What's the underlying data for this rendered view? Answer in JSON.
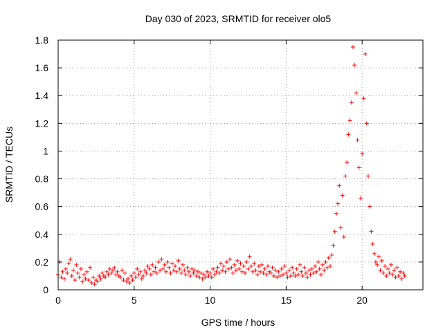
{
  "chart_data": {
    "type": "scatter",
    "title": "Day 030 of 2023, SRMTID for receiver olo5",
    "xlabel": "GPS time / hours",
    "ylabel": "SRMTID / TECUs",
    "xlim": [
      0,
      24
    ],
    "ylim": [
      0,
      1.8
    ],
    "xticks": [
      0,
      5,
      10,
      15,
      20
    ],
    "yticks": [
      0,
      0.2,
      0.4,
      0.6,
      0.8,
      1,
      1.2,
      1.4,
      1.6,
      1.8
    ],
    "xtick_labels": [
      "0",
      "5",
      "10",
      "15",
      "20"
    ],
    "ytick_labels": [
      "0",
      "0.2",
      "0.4",
      "0.6",
      "0.8",
      "1",
      "1.2",
      "1.4",
      "1.6",
      "1.8"
    ],
    "grid": true,
    "marker": "+",
    "color": "#ff0000",
    "series": [
      {
        "name": "SRMTID",
        "points": [
          [
            0.0,
            0.11
          ],
          [
            0.1,
            0.2
          ],
          [
            0.2,
            0.09
          ],
          [
            0.3,
            0.13
          ],
          [
            0.4,
            0.08
          ],
          [
            0.5,
            0.15
          ],
          [
            0.6,
            0.12
          ],
          [
            0.7,
            0.19
          ],
          [
            0.8,
            0.22
          ],
          [
            0.9,
            0.1
          ],
          [
            1.0,
            0.14
          ],
          [
            1.1,
            0.07
          ],
          [
            1.2,
            0.18
          ],
          [
            1.3,
            0.12
          ],
          [
            1.4,
            0.09
          ],
          [
            1.5,
            0.15
          ],
          [
            1.6,
            0.06
          ],
          [
            1.7,
            0.11
          ],
          [
            1.8,
            0.08
          ],
          [
            1.9,
            0.13
          ],
          [
            2.0,
            0.07
          ],
          [
            2.1,
            0.16
          ],
          [
            2.2,
            0.05
          ],
          [
            2.3,
            0.09
          ],
          [
            2.4,
            0.04
          ],
          [
            2.5,
            0.07
          ],
          [
            2.6,
            0.06
          ],
          [
            2.7,
            0.1
          ],
          [
            2.8,
            0.08
          ],
          [
            2.9,
            0.12
          ],
          [
            3.0,
            0.1
          ],
          [
            3.1,
            0.09
          ],
          [
            3.2,
            0.13
          ],
          [
            3.3,
            0.11
          ],
          [
            3.4,
            0.15
          ],
          [
            3.5,
            0.12
          ],
          [
            3.6,
            0.14
          ],
          [
            3.7,
            0.16
          ],
          [
            3.8,
            0.11
          ],
          [
            3.9,
            0.13
          ],
          [
            4.0,
            0.1
          ],
          [
            4.1,
            0.09
          ],
          [
            4.2,
            0.14
          ],
          [
            4.3,
            0.07
          ],
          [
            4.4,
            0.12
          ],
          [
            4.5,
            0.06
          ],
          [
            4.6,
            0.08
          ],
          [
            4.7,
            0.05
          ],
          [
            4.8,
            0.1
          ],
          [
            4.9,
            0.07
          ],
          [
            5.0,
            0.12
          ],
          [
            5.1,
            0.09
          ],
          [
            5.2,
            0.15
          ],
          [
            5.3,
            0.11
          ],
          [
            5.4,
            0.13
          ],
          [
            5.5,
            0.08
          ],
          [
            5.6,
            0.1
          ],
          [
            5.7,
            0.14
          ],
          [
            5.8,
            0.12
          ],
          [
            5.9,
            0.17
          ],
          [
            6.0,
            0.15
          ],
          [
            6.1,
            0.11
          ],
          [
            6.2,
            0.18
          ],
          [
            6.3,
            0.13
          ],
          [
            6.4,
            0.16
          ],
          [
            6.5,
            0.12
          ],
          [
            6.6,
            0.2
          ],
          [
            6.7,
            0.14
          ],
          [
            6.8,
            0.22
          ],
          [
            6.9,
            0.15
          ],
          [
            7.0,
            0.18
          ],
          [
            7.1,
            0.13
          ],
          [
            7.2,
            0.2
          ],
          [
            7.3,
            0.16
          ],
          [
            7.4,
            0.12
          ],
          [
            7.5,
            0.19
          ],
          [
            7.6,
            0.14
          ],
          [
            7.7,
            0.17
          ],
          [
            7.8,
            0.13
          ],
          [
            7.9,
            0.21
          ],
          [
            8.0,
            0.15
          ],
          [
            8.1,
            0.12
          ],
          [
            8.2,
            0.18
          ],
          [
            8.3,
            0.14
          ],
          [
            8.4,
            0.11
          ],
          [
            8.5,
            0.16
          ],
          [
            8.6,
            0.13
          ],
          [
            8.7,
            0.1
          ],
          [
            8.8,
            0.15
          ],
          [
            8.9,
            0.12
          ],
          [
            9.0,
            0.14
          ],
          [
            9.1,
            0.1
          ],
          [
            9.2,
            0.13
          ],
          [
            9.3,
            0.09
          ],
          [
            9.4,
            0.12
          ],
          [
            9.5,
            0.08
          ],
          [
            9.6,
            0.11
          ],
          [
            9.7,
            0.09
          ],
          [
            9.8,
            0.13
          ],
          [
            9.9,
            0.1
          ],
          [
            10.0,
            0.12
          ],
          [
            10.1,
            0.09
          ],
          [
            10.2,
            0.15
          ],
          [
            10.3,
            0.11
          ],
          [
            10.4,
            0.13
          ],
          [
            10.5,
            0.16
          ],
          [
            10.6,
            0.12
          ],
          [
            10.7,
            0.19
          ],
          [
            10.8,
            0.14
          ],
          [
            10.9,
            0.17
          ],
          [
            11.0,
            0.13
          ],
          [
            11.1,
            0.2
          ],
          [
            11.2,
            0.15
          ],
          [
            11.3,
            0.22
          ],
          [
            11.4,
            0.16
          ],
          [
            11.5,
            0.12
          ],
          [
            11.6,
            0.18
          ],
          [
            11.7,
            0.14
          ],
          [
            11.8,
            0.21
          ],
          [
            11.9,
            0.15
          ],
          [
            12.0,
            0.19
          ],
          [
            12.1,
            0.13
          ],
          [
            12.2,
            0.17
          ],
          [
            12.3,
            0.12
          ],
          [
            12.4,
            0.2
          ],
          [
            12.5,
            0.15
          ],
          [
            12.6,
            0.24
          ],
          [
            12.7,
            0.17
          ],
          [
            12.8,
            0.13
          ],
          [
            12.9,
            0.19
          ],
          [
            13.0,
            0.14
          ],
          [
            13.1,
            0.11
          ],
          [
            13.2,
            0.17
          ],
          [
            13.3,
            0.13
          ],
          [
            13.4,
            0.18
          ],
          [
            13.5,
            0.12
          ],
          [
            13.6,
            0.15
          ],
          [
            13.7,
            0.11
          ],
          [
            13.8,
            0.17
          ],
          [
            13.9,
            0.13
          ],
          [
            14.0,
            0.12
          ],
          [
            14.1,
            0.16
          ],
          [
            14.2,
            0.1
          ],
          [
            14.3,
            0.14
          ],
          [
            14.4,
            0.09
          ],
          [
            14.5,
            0.13
          ],
          [
            14.6,
            0.1
          ],
          [
            14.7,
            0.15
          ],
          [
            14.8,
            0.11
          ],
          [
            14.9,
            0.17
          ],
          [
            15.0,
            0.12
          ],
          [
            15.1,
            0.09
          ],
          [
            15.2,
            0.14
          ],
          [
            15.3,
            0.1
          ],
          [
            15.4,
            0.16
          ],
          [
            15.5,
            0.12
          ],
          [
            15.6,
            0.1
          ],
          [
            15.7,
            0.15
          ],
          [
            15.8,
            0.11
          ],
          [
            15.9,
            0.18
          ],
          [
            16.0,
            0.13
          ],
          [
            16.1,
            0.1
          ],
          [
            16.2,
            0.16
          ],
          [
            16.3,
            0.12
          ],
          [
            16.4,
            0.09
          ],
          [
            16.5,
            0.14
          ],
          [
            16.6,
            0.11
          ],
          [
            16.7,
            0.15
          ],
          [
            16.8,
            0.12
          ],
          [
            16.9,
            0.17
          ],
          [
            17.0,
            0.13
          ],
          [
            17.1,
            0.2
          ],
          [
            17.2,
            0.15
          ],
          [
            17.3,
            0.11
          ],
          [
            17.4,
            0.18
          ],
          [
            17.5,
            0.14
          ],
          [
            17.6,
            0.2
          ],
          [
            17.7,
            0.16
          ],
          [
            17.8,
            0.23
          ],
          [
            17.9,
            0.17
          ],
          [
            18.0,
            0.25
          ],
          [
            18.1,
            0.32
          ],
          [
            18.2,
            0.42
          ],
          [
            18.3,
            0.55
          ],
          [
            18.4,
            0.62
          ],
          [
            18.5,
            0.75
          ],
          [
            18.6,
            0.45
          ],
          [
            18.7,
            0.68
          ],
          [
            18.8,
            0.38
          ],
          [
            18.9,
            0.82
          ],
          [
            19.0,
            0.92
          ],
          [
            19.1,
            1.12
          ],
          [
            19.2,
            1.22
          ],
          [
            19.3,
            1.35
          ],
          [
            19.4,
            1.75
          ],
          [
            19.5,
            1.62
          ],
          [
            19.6,
            1.42
          ],
          [
            19.7,
            1.08
          ],
          [
            19.8,
            0.88
          ],
          [
            19.9,
            0.66
          ],
          [
            20.0,
            0.98
          ],
          [
            20.1,
            1.38
          ],
          [
            20.2,
            1.7
          ],
          [
            20.3,
            1.2
          ],
          [
            20.4,
            0.82
          ],
          [
            20.5,
            0.6
          ],
          [
            20.6,
            0.42
          ],
          [
            20.7,
            0.33
          ],
          [
            20.8,
            0.26
          ],
          [
            20.9,
            0.2
          ],
          [
            21.0,
            0.18
          ],
          [
            21.1,
            0.24
          ],
          [
            21.2,
            0.14
          ],
          [
            21.3,
            0.21
          ],
          [
            21.4,
            0.12
          ],
          [
            21.5,
            0.17
          ],
          [
            21.6,
            0.1
          ],
          [
            21.7,
            0.15
          ],
          [
            21.8,
            0.12
          ],
          [
            21.9,
            0.18
          ],
          [
            22.0,
            0.11
          ],
          [
            22.1,
            0.14
          ],
          [
            22.2,
            0.09
          ],
          [
            22.3,
            0.16
          ],
          [
            22.4,
            0.1
          ],
          [
            22.5,
            0.13
          ],
          [
            22.6,
            0.08
          ],
          [
            22.7,
            0.12
          ],
          [
            22.8,
            0.1
          ]
        ]
      }
    ]
  }
}
